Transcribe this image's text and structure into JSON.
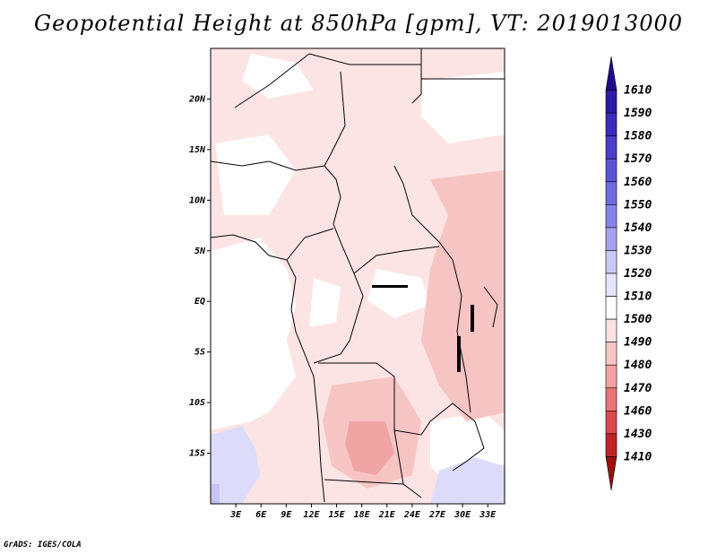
{
  "title": "Geopotential Height at 850hPa [gpm], VT: 2019013000",
  "credit": "GrADS: IGES/COLA",
  "map": {
    "lon_range": [
      0,
      35
    ],
    "lat_range": [
      -20,
      25
    ],
    "x_ticks": [
      "3E",
      "6E",
      "9E",
      "12E",
      "15E",
      "18E",
      "21E",
      "24E",
      "27E",
      "30E",
      "33E"
    ],
    "y_ticks": [
      "20N",
      "15N",
      "10N",
      "5N",
      "EQ",
      "5S",
      "10S",
      "15S"
    ]
  },
  "colorbar": {
    "labels": [
      "1610",
      "1590",
      "1580",
      "1570",
      "1560",
      "1550",
      "1540",
      "1530",
      "1520",
      "1510",
      "1500",
      "1490",
      "1480",
      "1470",
      "1460",
      "1430",
      "1410"
    ],
    "colors": [
      "#1e0e8c",
      "#2b1aa4",
      "#3a2cb8",
      "#4a3fc8",
      "#5b55d6",
      "#6c6ce0",
      "#8585e8",
      "#a3a3f0",
      "#c9c9f8",
      "#e4e4fc",
      "#ffffff",
      "#fde2e2",
      "#f9c6c6",
      "#f3a2a2",
      "#e97575",
      "#d94a4a",
      "#c02424",
      "#9c0e0e"
    ]
  }
}
